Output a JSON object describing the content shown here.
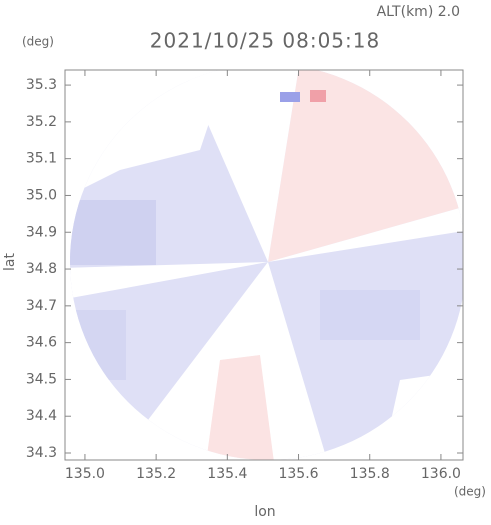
{
  "chart_data": {
    "type": "image",
    "title": "2021/10/25 08:05:18",
    "subtitle": "ALT(km) 2.0",
    "x_label": "lon",
    "y_label": "lat",
    "x_unit": "(deg)",
    "y_unit": "(deg)",
    "xlim": [
      134.944,
      136.062
    ],
    "ylim": [
      34.281,
      35.341
    ],
    "xticks": [
      {
        "value": 135,
        "label": "135.0"
      },
      135.2,
      135.4,
      135.6,
      135.8,
      {
        "value": 136,
        "label": "136.0"
      }
    ],
    "yticks": [
      34.3,
      34.4,
      34.5,
      34.6,
      34.7,
      34.8,
      34.9,
      {
        "value": 35,
        "label": "35.0"
      },
      35.1,
      35.2,
      35.3
    ]
  }
}
